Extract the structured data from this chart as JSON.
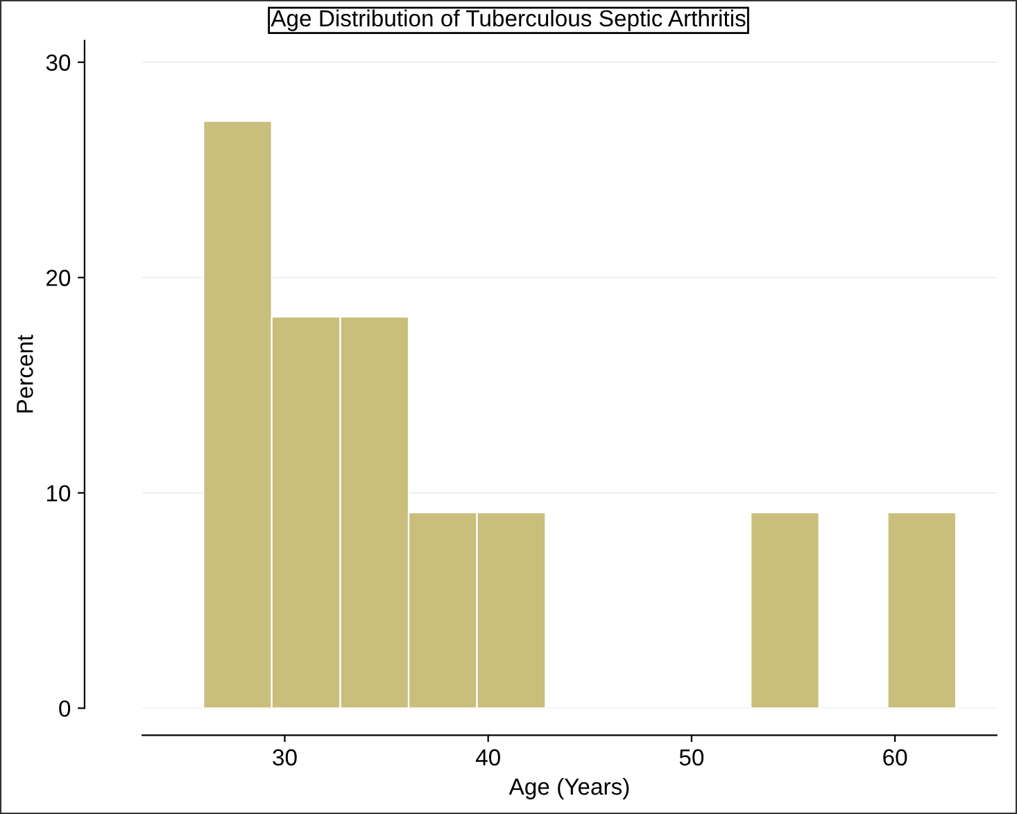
{
  "chart_data": {
    "type": "histogram",
    "title": "Age Distribution of Tuberculous Septic Arthritis",
    "xlabel": "Age (Years)",
    "ylabel": "Percent",
    "bins": [
      26,
      29.36,
      32.73,
      36.09,
      39.45,
      42.82,
      46.18,
      49.55,
      52.91,
      56.27,
      59.64,
      63
    ],
    "values": [
      27.27,
      18.18,
      18.18,
      9.09,
      9.09,
      0,
      0,
      0,
      9.09,
      0,
      9.09
    ],
    "color": "#c9be7c",
    "xlim": [
      23,
      65
    ],
    "ylim": [
      0,
      31
    ],
    "xticks": [
      30,
      40,
      50,
      60
    ],
    "yticks": [
      0,
      10,
      20,
      30
    ],
    "grid": "y"
  }
}
